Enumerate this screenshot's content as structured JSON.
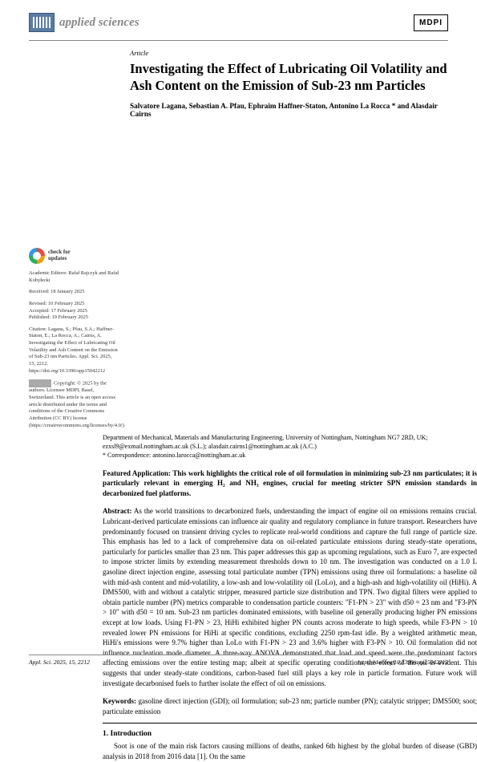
{
  "header": {
    "journal_name": "applied sciences",
    "publisher_logo": "MDPI"
  },
  "article": {
    "type": "Article",
    "title": "Investigating the Effect of Lubricating Oil Volatility and Ash Content on the Emission of Sub-23 nm Particles",
    "authors": "Salvatore Lagana, Sebastian A. Pfau, Ephraim Haffner-Staton, Antonino La Rocca * and Alasdair Cairns",
    "affiliation": "Department of Mechanical, Materials and Manufacturing Engineering, University of Nottingham, Nottingham NG7 2RD, UK; ezxsl9@exmail.nottingham.ac.uk (S.L.); alasdair.cairns1@nottingham.ac.uk (A.C.)",
    "correspondence": "* Correspondence: antonino.larocca@nottingham.ac.uk",
    "featured_label": "Featured Application:",
    "featured_text": "This work highlights the critical role of oil formulation in minimizing sub-23 nm particulates; it is particularly relevant in emerging H₂ and NH₃ engines, crucial for meeting stricter SPN emission standards in decarbonized fuel platforms.",
    "abstract_label": "Abstract:",
    "abstract_text": "As the world transitions to decarbonized fuels, understanding the impact of engine oil on emissions remains crucial. Lubricant-derived particulate emissions can influence air quality and regulatory compliance in future transport. Researchers have predominantly focused on transient driving cycles to replicate real-world conditions and capture the full range of particle size. This emphasis has led to a lack of comprehensive data on oil-related particulate emissions during steady-state operations, particularly for particles smaller than 23 nm. This paper addresses this gap as upcoming regulations, such as Euro 7, are expected to impose stricter limits by extending measurement thresholds down to 10 nm. The investigation was conducted on a 1.0 L gasoline direct injection engine, assessing total particulate number (TPN) emissions using three oil formulations: a baseline oil with mid-ash content and mid-volatility, a low-ash and low-volatility oil (LoLo), and a high-ash and high-volatility oil (HiHi). A DMS500, with and without a catalytic stripper, measured particle size distribution and TPN. Two digital filters were applied to obtain particle number (PN) metrics comparable to condensation particle counters: \"F1-PN > 23\" with d50 = 23 nm and \"F3-PN > 10\" with d50 = 10 nm. Sub-23 nm particles dominated emissions, with baseline oil generally producing higher PN emissions except at low loads. Using F1-PN > 23, HiHi exhibited higher PN counts across moderate to high speeds, while F3-PN > 10 revealed lower PN emissions for HiHi at specific conditions, excluding 2250 rpm-fast idle. By a weighted arithmetic mean, HiHi's emissions were 9.7% higher than LoLo with F1-PN > 23 and 3.6% higher with F3-PN > 10. Oil formulation did not influence nucleation mode diameter. A three-way ANOVA demonstrated that load and speed were the predominant factors affecting emissions over the entire testing map; albeit at specific operating conditions the effect of the oil is evident. This suggests that under steady-state conditions, carbon-based fuel still plays a key role in particle formation. Future work will investigate decarbonised fuels to further isolate the effect of oil on emissions.",
    "keywords_label": "Keywords:",
    "keywords_text": "gasoline direct injection (GDI); oil formulation; sub-23 nm; particle number (PN); catalytic stripper; DMS500; soot; particulate emission"
  },
  "sidebar": {
    "check_label": "check for",
    "check_label2": "updates",
    "editors": "Academic Editors: Rafał Rajczyk and Rafał Kobyłecki",
    "received": "Received: 18 January 2025",
    "revised": "Revised: 10 February 2025",
    "accepted": "Accepted: 17 February 2025",
    "published": "Published: 19 February 2025",
    "citation": "Citation: Lagana, S.; Pfau, S.A.; Haffner-Staton, E.; La Rocca, A.; Cairns, A. Investigating the Effect of Lubricating Oil Volatility and Ash Content on the Emission of Sub-23 nm Particles. Appl. Sci. 2025, 15, 2212. https://doi.org/10.3390/app15042212",
    "copyright": "Copyright: © 2025 by the authors. Licensee MDPI, Basel, Switzerland. This article is an open access article distributed under the terms and conditions of the Creative Commons Attribution (CC BY) license (https://creativecommons.org/licenses/by/4.0/)."
  },
  "section1": {
    "heading": "1. Introduction",
    "text": "Soot is one of the main risk factors causing millions of deaths, ranked 6th highest by the global burden of disease (GBD) analysis in 2018 from 2016 data [1]. On the same"
  },
  "footer": {
    "left": "Appl. Sci. 2025, 15, 2212",
    "right": "https://doi.org/10.3390/app15042212"
  }
}
